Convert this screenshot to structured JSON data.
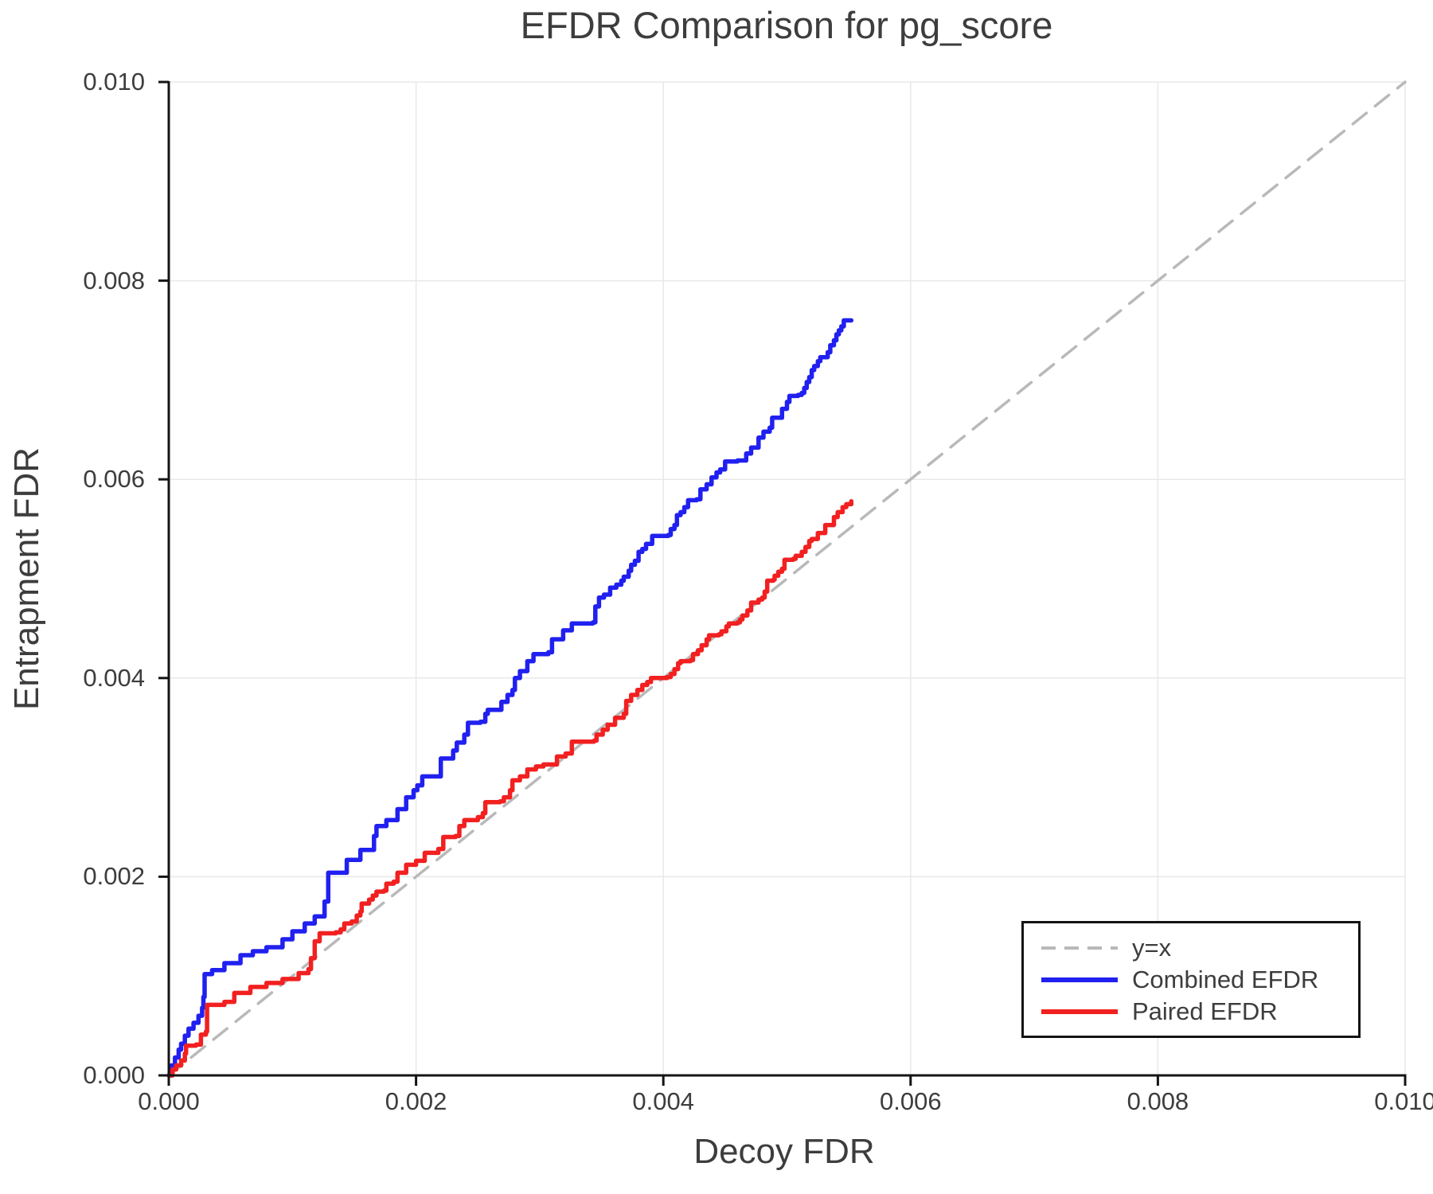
{
  "chart_data": {
    "type": "line",
    "title": "EFDR Comparison for pg_score",
    "xlabel": "Decoy FDR",
    "ylabel": "Entrapment FDR",
    "xlim": [
      0.0,
      0.01
    ],
    "ylim": [
      0.0,
      0.01
    ],
    "x_ticks": [
      0.0,
      0.002,
      0.004,
      0.006,
      0.008,
      0.01
    ],
    "x_tick_labels": [
      "0.000",
      "0.002",
      "0.004",
      "0.006",
      "0.008",
      "0.010"
    ],
    "y_ticks": [
      0.0,
      0.002,
      0.004,
      0.006,
      0.008,
      0.01
    ],
    "y_tick_labels": [
      "0.000",
      "0.002",
      "0.004",
      "0.006",
      "0.008",
      "0.010"
    ],
    "grid": true,
    "grid_color": "#e8e8e8",
    "spine_color": "#141414",
    "text_color": "#3d3d3d",
    "legend": {
      "position": "lower right",
      "entries": [
        {
          "label": "y=x",
          "color": "#b9b9b9",
          "style": "dashed"
        },
        {
          "label": "Combined EFDR",
          "color": "#2020f0",
          "style": "solid"
        },
        {
          "label": "Paired EFDR",
          "color": "#f22020",
          "style": "solid"
        }
      ]
    },
    "series": [
      {
        "name": "y=x",
        "color": "#b9b9b9",
        "style": "dashed",
        "step": false,
        "points": [
          [
            0.0,
            0.0
          ],
          [
            0.01,
            0.01
          ]
        ]
      },
      {
        "name": "Combined EFDR",
        "color": "#2020f0",
        "style": "solid",
        "step": true,
        "points": [
          [
            0,
            0
          ],
          [
            2e-05,
            0.0001
          ],
          [
            5e-05,
            0.00018
          ],
          [
            8e-05,
            0.00026
          ],
          [
            0.0001,
            0.00032
          ],
          [
            0.00013,
            0.0004
          ],
          [
            0.00016,
            0.00047
          ],
          [
            0.0002,
            0.00053
          ],
          [
            0.00024,
            0.0006
          ],
          [
            0.00027,
            0.00068
          ],
          [
            0.00028,
            0.00079
          ],
          [
            0.00029,
            0.00102
          ],
          [
            0.00035,
            0.00106
          ],
          [
            0.00045,
            0.00113
          ],
          [
            0.00058,
            0.00121
          ],
          [
            0.00068,
            0.00125
          ],
          [
            0.00079,
            0.00129
          ],
          [
            0.00092,
            0.00137
          ],
          [
            0.001,
            0.00145
          ],
          [
            0.0011,
            0.00153
          ],
          [
            0.00118,
            0.0016
          ],
          [
            0.00126,
            0.00175
          ],
          [
            0.00129,
            0.00204
          ],
          [
            0.00144,
            0.00217
          ],
          [
            0.00155,
            0.00227
          ],
          [
            0.00166,
            0.00241
          ],
          [
            0.00168,
            0.00251
          ],
          [
            0.00176,
            0.00257
          ],
          [
            0.00185,
            0.00268
          ],
          [
            0.00192,
            0.0028
          ],
          [
            0.00198,
            0.00287
          ],
          [
            0.00201,
            0.00292
          ],
          [
            0.00205,
            0.00301
          ],
          [
            0.0022,
            0.00319
          ],
          [
            0.0023,
            0.00327
          ],
          [
            0.00233,
            0.00335
          ],
          [
            0.00239,
            0.00343
          ],
          [
            0.00242,
            0.00355
          ],
          [
            0.00252,
            0.00356
          ],
          [
            0.00256,
            0.00364
          ],
          [
            0.00258,
            0.00368
          ],
          [
            0.00269,
            0.00376
          ],
          [
            0.00274,
            0.00383
          ],
          [
            0.00278,
            0.00388
          ],
          [
            0.0028,
            0.004
          ],
          [
            0.00284,
            0.00407
          ],
          [
            0.0029,
            0.00417
          ],
          [
            0.00295,
            0.00424
          ],
          [
            0.00307,
            0.00426
          ],
          [
            0.0031,
            0.00439
          ],
          [
            0.00319,
            0.00448
          ],
          [
            0.00326,
            0.00455
          ],
          [
            0.00343,
            0.00456
          ],
          [
            0.00345,
            0.00472
          ],
          [
            0.00348,
            0.00481
          ],
          [
            0.00352,
            0.00484
          ],
          [
            0.00357,
            0.00491
          ],
          [
            0.00362,
            0.00494
          ],
          [
            0.00366,
            0.00498
          ],
          [
            0.00368,
            0.00502
          ],
          [
            0.00372,
            0.00508
          ],
          [
            0.00374,
            0.00514
          ],
          [
            0.00377,
            0.00518
          ],
          [
            0.0038,
            0.00527
          ],
          [
            0.00383,
            0.0053
          ],
          [
            0.00386,
            0.00535
          ],
          [
            0.00391,
            0.00543
          ],
          [
            0.00404,
            0.00544
          ],
          [
            0.00406,
            0.0055
          ],
          [
            0.00409,
            0.00554
          ],
          [
            0.00411,
            0.00564
          ],
          [
            0.00414,
            0.00567
          ],
          [
            0.00417,
            0.00572
          ],
          [
            0.0042,
            0.00579
          ],
          [
            0.00427,
            0.0058
          ],
          [
            0.0043,
            0.0059
          ],
          [
            0.00435,
            0.00595
          ],
          [
            0.00439,
            0.00602
          ],
          [
            0.00443,
            0.00607
          ],
          [
            0.00446,
            0.0061
          ],
          [
            0.0045,
            0.00618
          ],
          [
            0.0046,
            0.00619
          ],
          [
            0.00467,
            0.00626
          ],
          [
            0.00471,
            0.00632
          ],
          [
            0.00477,
            0.00642
          ],
          [
            0.00481,
            0.00648
          ],
          [
            0.00486,
            0.00652
          ],
          [
            0.00488,
            0.00662
          ],
          [
            0.00496,
            0.00671
          ],
          [
            0.005,
            0.00678
          ],
          [
            0.00502,
            0.00684
          ],
          [
            0.00509,
            0.00685
          ],
          [
            0.00512,
            0.00687
          ],
          [
            0.00514,
            0.00692
          ],
          [
            0.00516,
            0.00698
          ],
          [
            0.00518,
            0.00703
          ],
          [
            0.0052,
            0.0071
          ],
          [
            0.00522,
            0.00714
          ],
          [
            0.00525,
            0.00719
          ],
          [
            0.00527,
            0.00723
          ],
          [
            0.00533,
            0.00728
          ],
          [
            0.00535,
            0.00735
          ],
          [
            0.00538,
            0.0074
          ],
          [
            0.0054,
            0.00746
          ],
          [
            0.00542,
            0.0075
          ],
          [
            0.00544,
            0.00754
          ],
          [
            0.00546,
            0.0076
          ],
          [
            0.00552,
            0.0076
          ]
        ]
      },
      {
        "name": "Paired EFDR",
        "color": "#f22020",
        "style": "solid",
        "step": true,
        "points": [
          [
            0,
            0
          ],
          [
            3e-05,
            6e-05
          ],
          [
            6e-05,
            0.0001
          ],
          [
            0.0001,
            0.00015
          ],
          [
            0.00013,
            0.00022
          ],
          [
            0.00014,
            0.0003
          ],
          [
            0.00022,
            0.00031
          ],
          [
            0.00026,
            0.00041
          ],
          [
            0.0003,
            0.00044
          ],
          [
            0.00031,
            0.00071
          ],
          [
            0.00045,
            0.00074
          ],
          [
            0.00053,
            0.00083
          ],
          [
            0.00066,
            0.00089
          ],
          [
            0.00079,
            0.00093
          ],
          [
            0.00092,
            0.00097
          ],
          [
            0.00105,
            0.00103
          ],
          [
            0.00113,
            0.00107
          ],
          [
            0.00115,
            0.00118
          ],
          [
            0.00118,
            0.00135
          ],
          [
            0.00122,
            0.00143
          ],
          [
            0.00135,
            0.00144
          ],
          [
            0.00139,
            0.00147
          ],
          [
            0.00142,
            0.00153
          ],
          [
            0.00148,
            0.00155
          ],
          [
            0.00152,
            0.00161
          ],
          [
            0.00155,
            0.00165
          ],
          [
            0.00156,
            0.00173
          ],
          [
            0.00162,
            0.00177
          ],
          [
            0.00165,
            0.00181
          ],
          [
            0.00168,
            0.00185
          ],
          [
            0.00174,
            0.00186
          ],
          [
            0.00176,
            0.00193
          ],
          [
            0.00182,
            0.00195
          ],
          [
            0.00185,
            0.00204
          ],
          [
            0.00192,
            0.00212
          ],
          [
            0.002,
            0.00216
          ],
          [
            0.00207,
            0.00224
          ],
          [
            0.00218,
            0.00228
          ],
          [
            0.00222,
            0.0024
          ],
          [
            0.00232,
            0.00241
          ],
          [
            0.00235,
            0.00251
          ],
          [
            0.00239,
            0.00257
          ],
          [
            0.0025,
            0.0026
          ],
          [
            0.00254,
            0.00264
          ],
          [
            0.00256,
            0.00275
          ],
          [
            0.00268,
            0.00276
          ],
          [
            0.00271,
            0.0028
          ],
          [
            0.00276,
            0.00287
          ],
          [
            0.00278,
            0.00297
          ],
          [
            0.00284,
            0.00301
          ],
          [
            0.0029,
            0.00308
          ],
          [
            0.00297,
            0.00311
          ],
          [
            0.00303,
            0.00313
          ],
          [
            0.00314,
            0.00321
          ],
          [
            0.00321,
            0.00324
          ],
          [
            0.00326,
            0.00336
          ],
          [
            0.00344,
            0.00337
          ],
          [
            0.00346,
            0.00343
          ],
          [
            0.00351,
            0.00348
          ],
          [
            0.00355,
            0.00353
          ],
          [
            0.00361,
            0.0036
          ],
          [
            0.00368,
            0.00364
          ],
          [
            0.0037,
            0.00377
          ],
          [
            0.00374,
            0.00383
          ],
          [
            0.00379,
            0.00388
          ],
          [
            0.00383,
            0.00393
          ],
          [
            0.00387,
            0.00396
          ],
          [
            0.0039,
            0.004
          ],
          [
            0.00403,
            0.00401
          ],
          [
            0.00406,
            0.00404
          ],
          [
            0.00409,
            0.00409
          ],
          [
            0.00412,
            0.00415
          ],
          [
            0.00414,
            0.00417
          ],
          [
            0.00422,
            0.00418
          ],
          [
            0.00424,
            0.00424
          ],
          [
            0.00428,
            0.00428
          ],
          [
            0.00431,
            0.00433
          ],
          [
            0.00435,
            0.00439
          ],
          [
            0.00437,
            0.00443
          ],
          [
            0.00445,
            0.00444
          ],
          [
            0.00447,
            0.00447
          ],
          [
            0.00451,
            0.00452
          ],
          [
            0.00453,
            0.00455
          ],
          [
            0.0046,
            0.00456
          ],
          [
            0.00462,
            0.00459
          ],
          [
            0.00464,
            0.00463
          ],
          [
            0.00468,
            0.00468
          ],
          [
            0.00471,
            0.00476
          ],
          [
            0.00477,
            0.00479
          ],
          [
            0.0048,
            0.00481
          ],
          [
            0.00482,
            0.00487
          ],
          [
            0.00484,
            0.00498
          ],
          [
            0.00489,
            0.00499
          ],
          [
            0.0049,
            0.00503
          ],
          [
            0.00493,
            0.00507
          ],
          [
            0.00496,
            0.0051
          ],
          [
            0.00498,
            0.00519
          ],
          [
            0.00505,
            0.0052
          ],
          [
            0.00507,
            0.00523
          ],
          [
            0.00512,
            0.00527
          ],
          [
            0.00515,
            0.00532
          ],
          [
            0.00518,
            0.00538
          ],
          [
            0.0052,
            0.0054
          ],
          [
            0.00525,
            0.00546
          ],
          [
            0.00531,
            0.00554
          ],
          [
            0.00538,
            0.00562
          ],
          [
            0.00541,
            0.00567
          ],
          [
            0.00545,
            0.00572
          ],
          [
            0.00548,
            0.00575
          ],
          [
            0.00552,
            0.00578
          ]
        ]
      }
    ]
  }
}
